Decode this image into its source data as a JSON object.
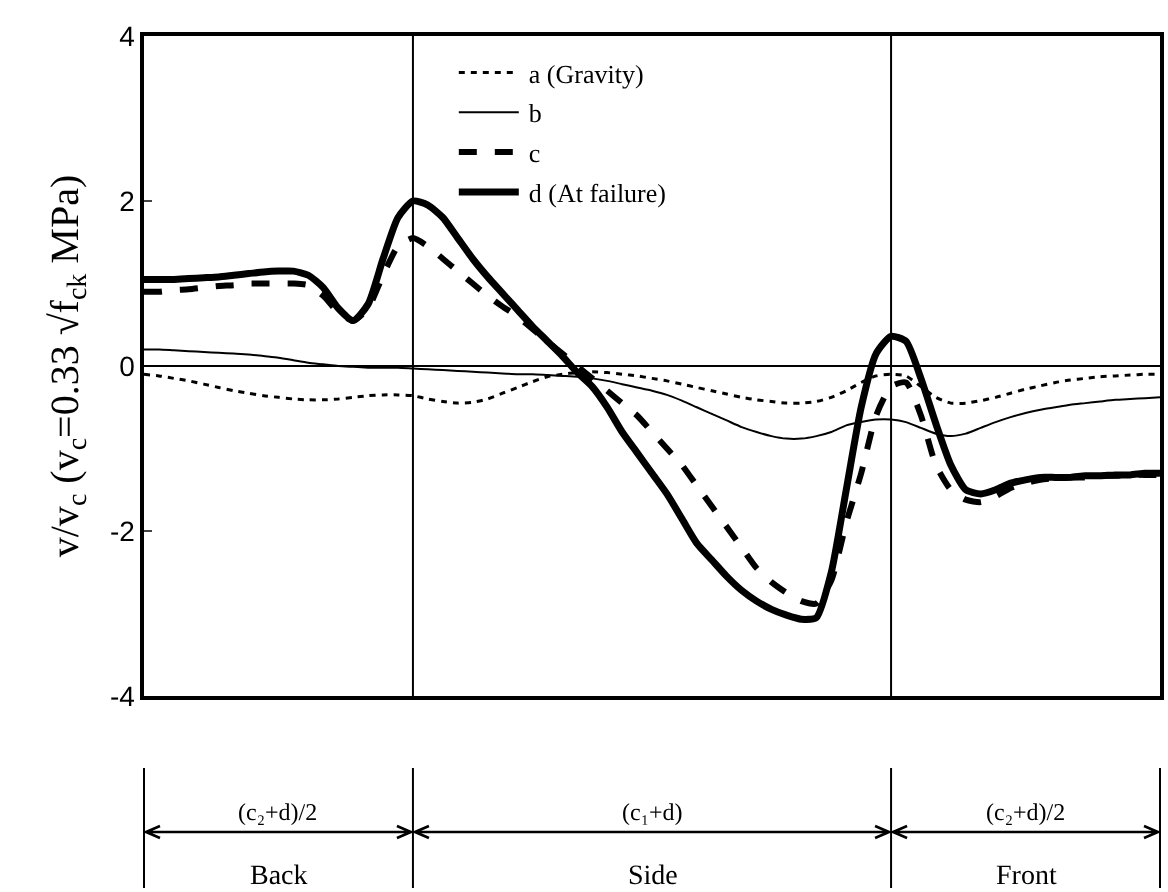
{
  "chart_data": {
    "type": "line",
    "ylabel": "v/v$_{c}$ (v$_{c}$=0.33 √f$_{ck}$ MPa)",
    "categories": [
      null,
      null,
      null,
      null,
      null,
      null,
      null,
      null,
      null,
      null,
      null,
      null,
      null,
      null,
      null,
      null,
      null,
      null,
      null,
      null,
      null,
      null,
      null,
      null,
      null,
      null,
      null,
      null,
      null,
      null,
      null,
      null,
      null,
      null,
      null,
      null,
      null,
      null,
      null,
      null,
      null,
      null,
      null,
      null,
      null,
      null,
      null,
      null,
      null,
      null,
      null,
      null,
      null,
      null,
      null,
      null,
      null,
      null,
      null,
      null,
      null,
      null,
      null,
      null,
      null,
      null,
      null,
      null,
      null
    ],
    "series": [
      {
        "name": "a (Gravity)",
        "color": "#000000",
        "line_style": "dotted",
        "values": [
          -0.1,
          -0.12,
          -0.15,
          -0.18,
          -0.22,
          -0.26,
          -0.3,
          -0.33,
          -0.36,
          -0.38,
          -0.4,
          -0.41,
          -0.41,
          -0.4,
          -0.38,
          -0.36,
          -0.35,
          -0.35,
          -0.36,
          -0.4,
          -0.43,
          -0.45,
          -0.44,
          -0.4,
          -0.33,
          -0.26,
          -0.19,
          -0.13,
          -0.1,
          -0.08,
          -0.07,
          -0.08,
          -0.1,
          -0.12,
          -0.15,
          -0.18,
          -0.22,
          -0.26,
          -0.3,
          -0.34,
          -0.38,
          -0.41,
          -0.43,
          -0.45,
          -0.45,
          -0.43,
          -0.38,
          -0.3,
          -0.2,
          -0.12,
          -0.1,
          -0.12,
          -0.25,
          -0.38,
          -0.45,
          -0.45,
          -0.42,
          -0.38,
          -0.33,
          -0.28,
          -0.24,
          -0.2,
          -0.17,
          -0.15,
          -0.13,
          -0.12,
          -0.11,
          -0.1,
          -0.1
        ]
      },
      {
        "name": "b",
        "color": "#000000",
        "line_style": "solid",
        "values": [
          0.2,
          0.2,
          0.19,
          0.18,
          0.17,
          0.16,
          0.15,
          0.14,
          0.12,
          0.1,
          0.07,
          0.04,
          0.02,
          0.0,
          -0.01,
          -0.02,
          -0.02,
          -0.02,
          -0.03,
          -0.04,
          -0.05,
          -0.06,
          -0.07,
          -0.08,
          -0.09,
          -0.1,
          -0.1,
          -0.11,
          -0.12,
          -0.13,
          -0.15,
          -0.18,
          -0.22,
          -0.26,
          -0.3,
          -0.35,
          -0.42,
          -0.5,
          -0.58,
          -0.66,
          -0.74,
          -0.8,
          -0.85,
          -0.88,
          -0.88,
          -0.85,
          -0.8,
          -0.72,
          -0.68,
          -0.65,
          -0.65,
          -0.68,
          -0.75,
          -0.82,
          -0.85,
          -0.82,
          -0.75,
          -0.68,
          -0.62,
          -0.57,
          -0.53,
          -0.5,
          -0.47,
          -0.45,
          -0.43,
          -0.41,
          -0.4,
          -0.39,
          -0.38
        ]
      },
      {
        "name": "c",
        "color": "#000000",
        "line_style": "dashed",
        "values": [
          0.9,
          0.9,
          0.92,
          0.93,
          0.95,
          0.97,
          0.98,
          1.0,
          1.0,
          1.0,
          1.0,
          0.98,
          0.85,
          0.65,
          0.55,
          0.7,
          1.1,
          1.45,
          1.55,
          1.45,
          1.3,
          1.15,
          1.0,
          0.85,
          0.72,
          0.6,
          0.45,
          0.3,
          0.15,
          0.0,
          -0.15,
          -0.3,
          -0.45,
          -0.6,
          -0.8,
          -1.0,
          -1.2,
          -1.45,
          -1.7,
          -1.95,
          -2.2,
          -2.45,
          -2.62,
          -2.75,
          -2.85,
          -2.88,
          -2.6,
          -1.9,
          -1.3,
          -0.6,
          -0.25,
          -0.2,
          -0.6,
          -1.2,
          -1.5,
          -1.62,
          -1.65,
          -1.58,
          -1.48,
          -1.42,
          -1.38,
          -1.36,
          -1.35,
          -1.35,
          -1.33,
          -1.33,
          -1.32,
          -1.32,
          -1.32
        ]
      },
      {
        "name": "d (At failure)",
        "color": "#000000",
        "line_style": "solid",
        "values": [
          1.05,
          1.05,
          1.05,
          1.06,
          1.07,
          1.08,
          1.1,
          1.12,
          1.14,
          1.15,
          1.15,
          1.1,
          0.95,
          0.7,
          0.55,
          0.75,
          1.3,
          1.8,
          2.0,
          1.95,
          1.8,
          1.55,
          1.3,
          1.08,
          0.88,
          0.68,
          0.48,
          0.3,
          0.12,
          -0.08,
          -0.25,
          -0.5,
          -0.8,
          -1.05,
          -1.3,
          -1.55,
          -1.85,
          -2.15,
          -2.35,
          -2.55,
          -2.72,
          -2.85,
          -2.95,
          -3.02,
          -3.07,
          -3.05,
          -2.5,
          -1.5,
          -0.5,
          0.15,
          0.36,
          0.3,
          -0.15,
          -0.7,
          -1.2,
          -1.5,
          -1.55,
          -1.5,
          -1.42,
          -1.38,
          -1.35,
          -1.35,
          -1.35,
          -1.33,
          -1.33,
          -1.32,
          -1.32,
          -1.3,
          -1.3
        ]
      }
    ],
    "ylim": [
      -4,
      4
    ],
    "yticks": [
      -4,
      -2,
      0,
      2,
      4
    ],
    "grid": false,
    "legend": "top",
    "marker": "none",
    "tick_labels": "y",
    "ref_lines": [
      {
        "axis": "y",
        "value": 0
      }
    ],
    "annotations": [
      "(c₂+d)/2",
      "(c₁+d)",
      "(c₂+d)/2",
      "Back",
      "Side",
      "Front"
    ]
  }
}
